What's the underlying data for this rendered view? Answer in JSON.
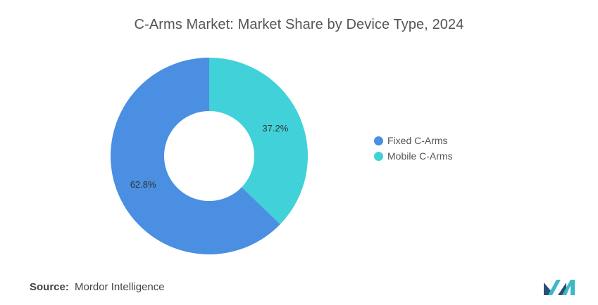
{
  "chart_data": {
    "type": "pie",
    "title": "C-Arms Market: Market Share by Device Type, 2024",
    "donut": true,
    "categories": [
      "Fixed C-Arms",
      "Mobile C-Arms"
    ],
    "values": [
      62.8,
      37.2
    ],
    "labels": [
      "62.8%",
      "37.2%"
    ],
    "colors": [
      "#4a8fe2",
      "#41d1d9"
    ],
    "legend_position": "right"
  },
  "source": {
    "label": "Source:",
    "text": "Mordor Intelligence"
  },
  "logo": {
    "icon": "mordor-intelligence-logo"
  }
}
